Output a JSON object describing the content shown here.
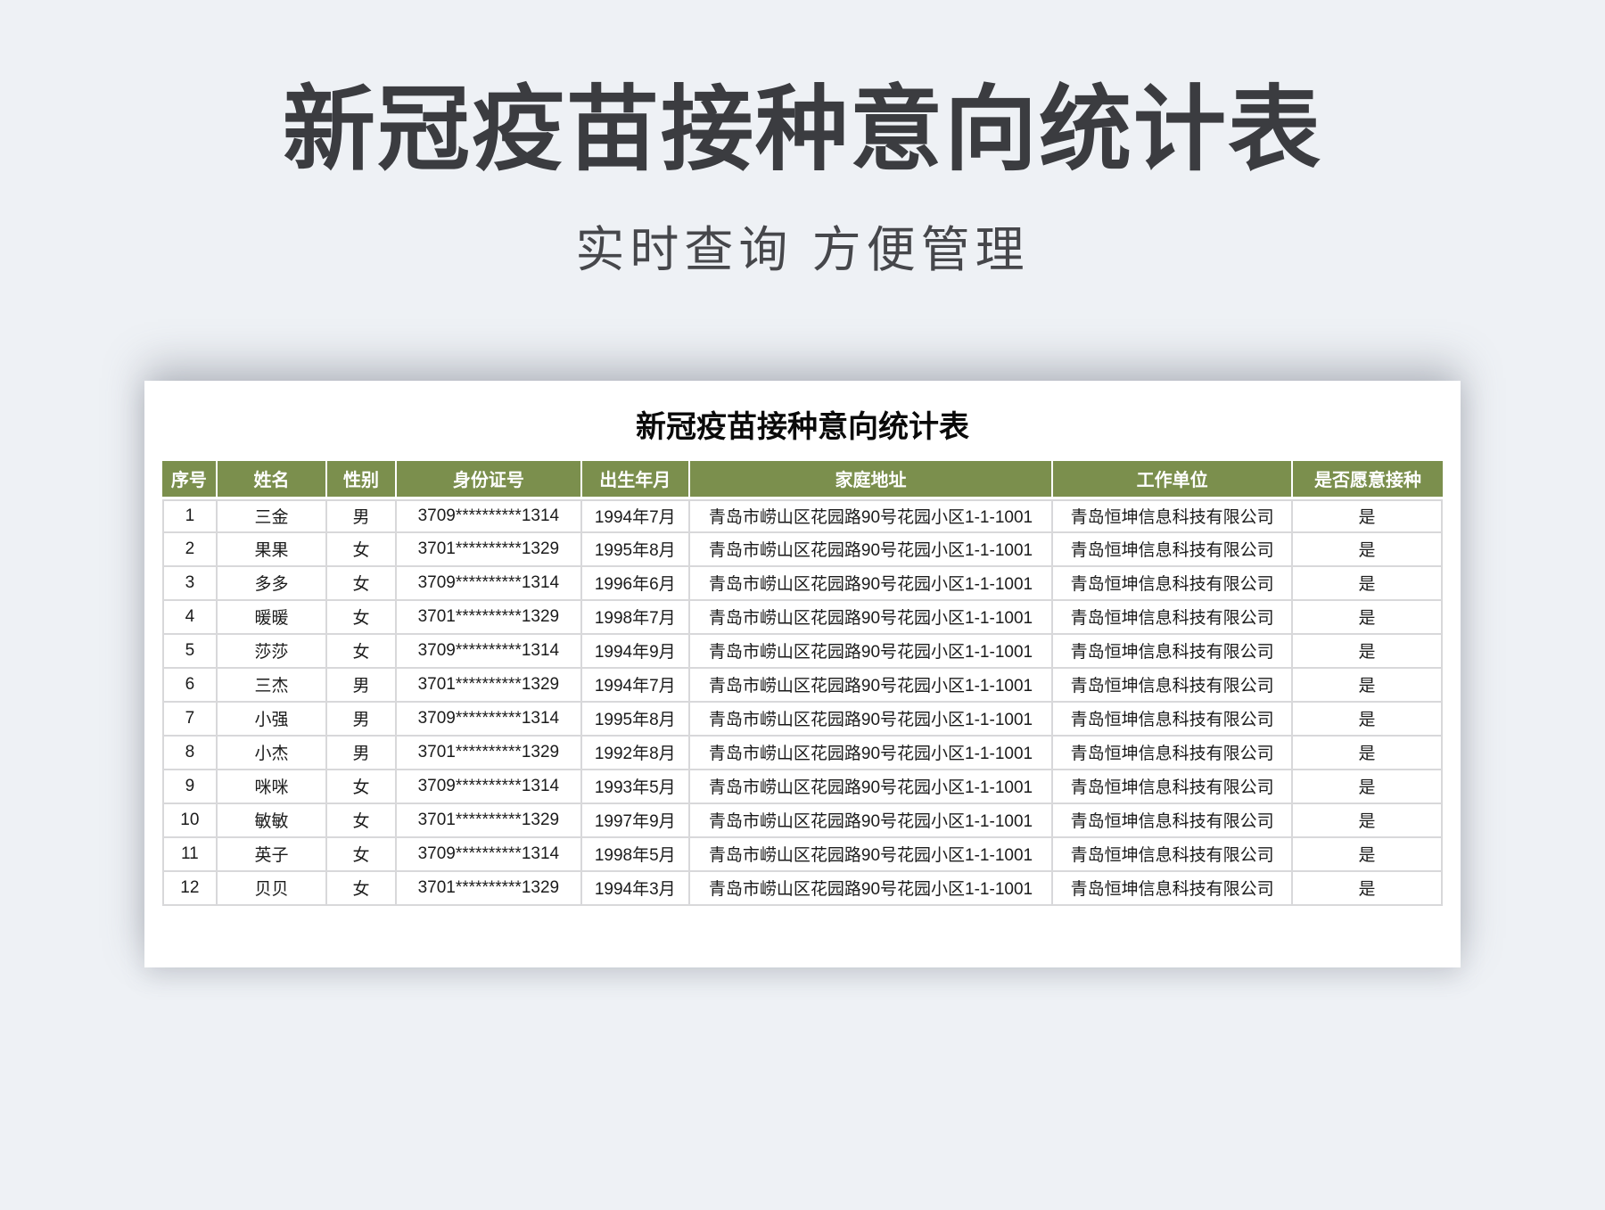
{
  "page": {
    "title": "新冠疫苗接种意向统计表",
    "subtitle": "实时查询 方便管理"
  },
  "card": {
    "table_title": "新冠疫苗接种意向统计表",
    "columns": [
      "序号",
      "姓名",
      "性别",
      "身份证号",
      "出生年月",
      "家庭地址",
      "工作单位",
      "是否愿意接种"
    ],
    "rows": [
      [
        "1",
        "三金",
        "男",
        "3709**********1314",
        "1994年7月",
        "青岛市崂山区花园路90号花园小区1-1-1001",
        "青岛恒坤信息科技有限公司",
        "是"
      ],
      [
        "2",
        "果果",
        "女",
        "3701**********1329",
        "1995年8月",
        "青岛市崂山区花园路90号花园小区1-1-1001",
        "青岛恒坤信息科技有限公司",
        "是"
      ],
      [
        "3",
        "多多",
        "女",
        "3709**********1314",
        "1996年6月",
        "青岛市崂山区花园路90号花园小区1-1-1001",
        "青岛恒坤信息科技有限公司",
        "是"
      ],
      [
        "4",
        "暖暖",
        "女",
        "3701**********1329",
        "1998年7月",
        "青岛市崂山区花园路90号花园小区1-1-1001",
        "青岛恒坤信息科技有限公司",
        "是"
      ],
      [
        "5",
        "莎莎",
        "女",
        "3709**********1314",
        "1994年9月",
        "青岛市崂山区花园路90号花园小区1-1-1001",
        "青岛恒坤信息科技有限公司",
        "是"
      ],
      [
        "6",
        "三杰",
        "男",
        "3701**********1329",
        "1994年7月",
        "青岛市崂山区花园路90号花园小区1-1-1001",
        "青岛恒坤信息科技有限公司",
        "是"
      ],
      [
        "7",
        "小强",
        "男",
        "3709**********1314",
        "1995年8月",
        "青岛市崂山区花园路90号花园小区1-1-1001",
        "青岛恒坤信息科技有限公司",
        "是"
      ],
      [
        "8",
        "小杰",
        "男",
        "3701**********1329",
        "1992年8月",
        "青岛市崂山区花园路90号花园小区1-1-1001",
        "青岛恒坤信息科技有限公司",
        "是"
      ],
      [
        "9",
        "咪咪",
        "女",
        "3709**********1314",
        "1993年5月",
        "青岛市崂山区花园路90号花园小区1-1-1001",
        "青岛恒坤信息科技有限公司",
        "是"
      ],
      [
        "10",
        "敏敏",
        "女",
        "3701**********1329",
        "1997年9月",
        "青岛市崂山区花园路90号花园小区1-1-1001",
        "青岛恒坤信息科技有限公司",
        "是"
      ],
      [
        "11",
        "英子",
        "女",
        "3709**********1314",
        "1998年5月",
        "青岛市崂山区花园路90号花园小区1-1-1001",
        "青岛恒坤信息科技有限公司",
        "是"
      ],
      [
        "12",
        "贝贝",
        "女",
        "3701**********1329",
        "1994年3月",
        "青岛市崂山区花园路90号花园小区1-1-1001",
        "青岛恒坤信息科技有限公司",
        "是"
      ]
    ]
  },
  "colors": {
    "page_bg": "#eef1f5",
    "title_color": "#3b3c40",
    "subtitle_color": "#46474b",
    "header_bg": "#7b8f4d",
    "border_color": "#d8d8da"
  }
}
